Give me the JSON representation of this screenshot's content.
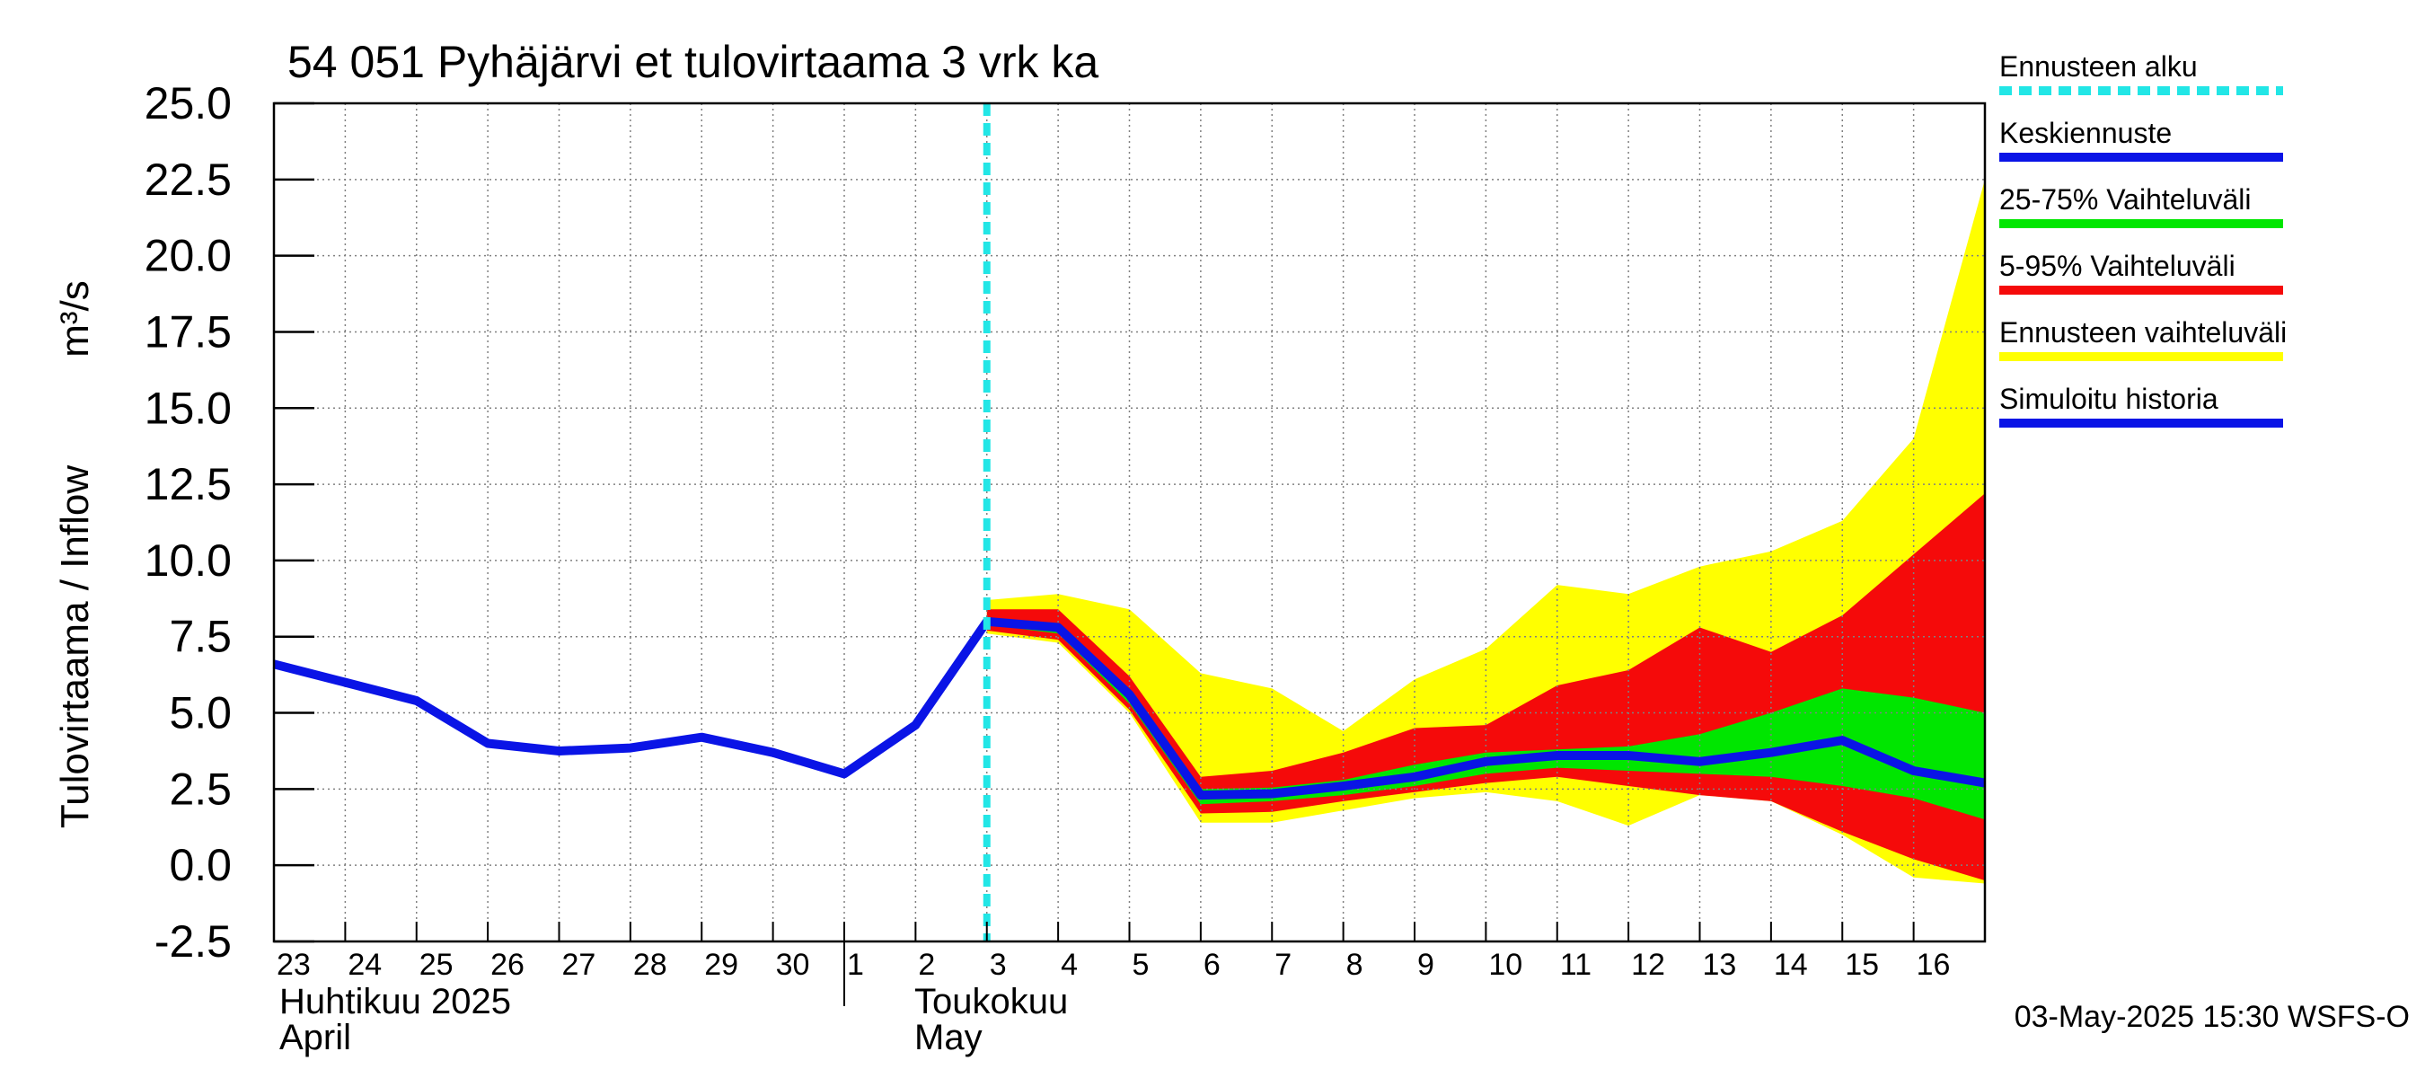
{
  "chart_data": {
    "type": "area",
    "title": "54 051 Pyhäjärvi et tulovirtaama 3 vrk ka",
    "ylabel_main": "Tulovirtaama / Inflow",
    "ylabel_unit": "m³/s",
    "ylim": [
      -2.5,
      25.0
    ],
    "yticks": [
      "25.0",
      "22.5",
      "20.0",
      "17.5",
      "15.0",
      "12.5",
      "10.0",
      "7.5",
      "5.0",
      "2.5",
      "0.0",
      "-2.5"
    ],
    "ytick_values": [
      25.0,
      22.5,
      20.0,
      17.5,
      15.0,
      12.5,
      10.0,
      7.5,
      5.0,
      2.5,
      0.0,
      -2.5
    ],
    "day_labels": [
      "23",
      "24",
      "25",
      "26",
      "27",
      "28",
      "29",
      "30",
      "1",
      "2",
      "3",
      "4",
      "5",
      "6",
      "7",
      "8",
      "9",
      "10",
      "11",
      "12",
      "13",
      "14",
      "15",
      "16"
    ],
    "month_labels": [
      {
        "fi": "Huhtikuu  2025",
        "en": "April",
        "day_index": 0
      },
      {
        "fi": "Toukokuu",
        "en": "May",
        "day_index": 8
      }
    ],
    "grid": true,
    "forecast_start_day_index": 10,
    "simulated_history": {
      "name": "Simuloitu historia",
      "x": [
        0,
        1,
        2,
        3,
        4,
        5,
        6,
        7,
        8,
        9,
        10
      ],
      "values": [
        6.6,
        6.0,
        5.4,
        4.0,
        3.75,
        3.85,
        4.2,
        3.7,
        3.0,
        4.6,
        8.0
      ]
    },
    "forecast_x": [
      10,
      11,
      12,
      13,
      14,
      15,
      16,
      17,
      18,
      19,
      20,
      21,
      22,
      23,
      24
    ],
    "median": {
      "name": "Keskiennuste",
      "values": [
        8.0,
        7.8,
        5.6,
        2.3,
        2.35,
        2.6,
        2.9,
        3.4,
        3.6,
        3.6,
        3.4,
        3.7,
        4.1,
        3.1,
        2.7
      ]
    },
    "band_25_75": {
      "name": "25-75% Vaihteluväli",
      "lower": [
        7.9,
        7.6,
        5.3,
        2.0,
        2.1,
        2.3,
        2.6,
        3.0,
        3.2,
        3.1,
        3.0,
        2.9,
        2.6,
        2.2,
        1.5
      ],
      "upper": [
        8.1,
        7.95,
        5.8,
        2.5,
        2.55,
        2.8,
        3.3,
        3.7,
        3.8,
        3.9,
        4.3,
        5.0,
        5.8,
        5.5,
        5.0
      ]
    },
    "band_5_95": {
      "name": "5-95% Vaihteluväli",
      "lower": [
        7.7,
        7.4,
        5.1,
        1.7,
        1.75,
        2.1,
        2.4,
        2.7,
        2.9,
        2.6,
        2.3,
        2.1,
        1.1,
        0.2,
        -0.5
      ],
      "upper": [
        8.4,
        8.4,
        6.2,
        2.9,
        3.1,
        3.7,
        4.5,
        4.6,
        5.9,
        6.4,
        7.8,
        7.0,
        8.2,
        10.2,
        12.2
      ]
    },
    "band_ensemble": {
      "name": "Ennusteen vaihteluväli",
      "lower": [
        7.6,
        7.3,
        5.0,
        1.4,
        1.4,
        1.8,
        2.2,
        2.4,
        2.1,
        1.3,
        2.3,
        2.1,
        1.0,
        -0.4,
        -0.6
      ],
      "upper": [
        8.7,
        8.9,
        8.4,
        6.3,
        5.8,
        4.4,
        6.1,
        7.1,
        9.2,
        8.9,
        9.8,
        10.3,
        11.3,
        14.0,
        22.5
      ]
    },
    "legend": [
      {
        "label": "Ennusteen alku",
        "color": "#22e6e6",
        "style": "dashed"
      },
      {
        "label": "Keskiennuste",
        "color": "#0a14e6",
        "style": "solid"
      },
      {
        "label": "25-75% Vaihteluväli",
        "color": "#00e600",
        "style": "solid"
      },
      {
        "label": "5-95% Vaihteluväli",
        "color": "#f50a0a",
        "style": "solid"
      },
      {
        "label": "Ennusteen vaihteluväli",
        "color": "#ffff00",
        "style": "solid"
      },
      {
        "label": "Simuloitu historia",
        "color": "#0a14e6",
        "style": "solid"
      }
    ],
    "legend_position": "right",
    "footer": "03-May-2025 15:30 WSFS-O",
    "colors": {
      "history": "#0a14e6",
      "median": "#0a14e6",
      "band_25_75": "#00e600",
      "band_5_95": "#f50a0a",
      "band_ensemble": "#ffff00",
      "forecast_start": "#22e6e6",
      "grid": "#808080"
    }
  }
}
